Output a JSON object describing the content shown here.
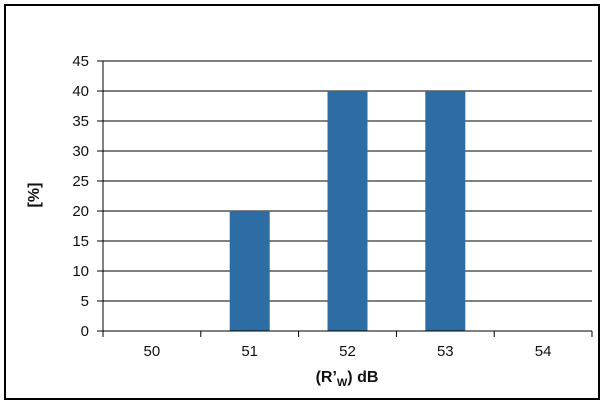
{
  "chart_data": {
    "type": "bar",
    "categories": [
      "50",
      "51",
      "52",
      "53",
      "54"
    ],
    "values": [
      0,
      20,
      40,
      40,
      0
    ],
    "yticks": [
      0,
      5,
      10,
      15,
      20,
      25,
      30,
      35,
      40,
      45
    ],
    "ylim": [
      0,
      45
    ],
    "xlabel": {
      "main": "(R’",
      "sub": "W",
      "tail": ") dB"
    },
    "ylabel": "[%]",
    "grid": true,
    "colors": {
      "bar": "#2e6da4",
      "grid": "#000000",
      "axis": "#000000",
      "frame": "#000000"
    }
  }
}
